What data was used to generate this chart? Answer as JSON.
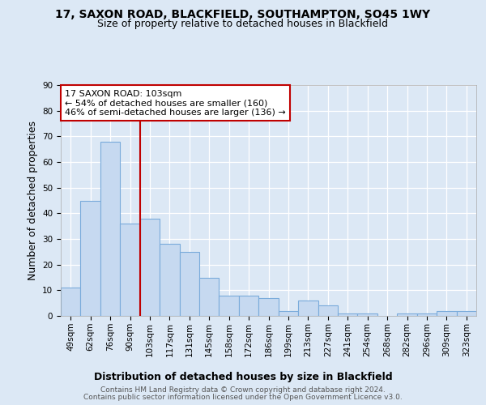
{
  "title1": "17, SAXON ROAD, BLACKFIELD, SOUTHAMPTON, SO45 1WY",
  "title2": "Size of property relative to detached houses in Blackfield",
  "xlabel": "Distribution of detached houses by size in Blackfield",
  "ylabel": "Number of detached properties",
  "categories": [
    "49sqm",
    "62sqm",
    "76sqm",
    "90sqm",
    "103sqm",
    "117sqm",
    "131sqm",
    "145sqm",
    "158sqm",
    "172sqm",
    "186sqm",
    "199sqm",
    "213sqm",
    "227sqm",
    "241sqm",
    "254sqm",
    "268sqm",
    "282sqm",
    "296sqm",
    "309sqm",
    "323sqm"
  ],
  "values": [
    11,
    45,
    68,
    36,
    38,
    28,
    25,
    15,
    8,
    8,
    7,
    2,
    6,
    4,
    1,
    1,
    0,
    1,
    1,
    2,
    2
  ],
  "bar_color": "#c6d9f0",
  "bar_edge_color": "#7aabdb",
  "highlight_index": 4,
  "highlight_line_color": "#c00000",
  "annotation_line1": "17 SAXON ROAD: 103sqm",
  "annotation_line2": "← 54% of detached houses are smaller (160)",
  "annotation_line3": "46% of semi-detached houses are larger (136) →",
  "annotation_box_color": "#ffffff",
  "annotation_box_edge": "#c00000",
  "background_color": "#dce8f5",
  "plot_bg_color": "#dce8f5",
  "ylim": [
    0,
    90
  ],
  "yticks": [
    0,
    10,
    20,
    30,
    40,
    50,
    60,
    70,
    80,
    90
  ],
  "footer1": "Contains HM Land Registry data © Crown copyright and database right 2024.",
  "footer2": "Contains public sector information licensed under the Open Government Licence v3.0.",
  "title_fontsize": 10,
  "subtitle_fontsize": 9,
  "axis_label_fontsize": 9,
  "tick_fontsize": 7.5,
  "annotation_fontsize": 8,
  "footer_fontsize": 6.5
}
